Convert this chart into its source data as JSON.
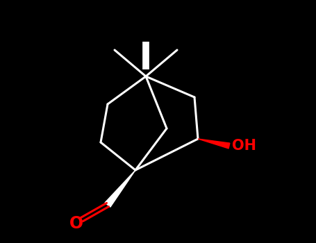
{
  "background_color": "#000000",
  "bond_color": "#ffffff",
  "oh_color": "#ff0000",
  "o_color": "#ff0000",
  "bond_lw": 2.2,
  "bold_lw": 7.0,
  "figsize": [
    4.55,
    3.5
  ],
  "dpi": 100
}
